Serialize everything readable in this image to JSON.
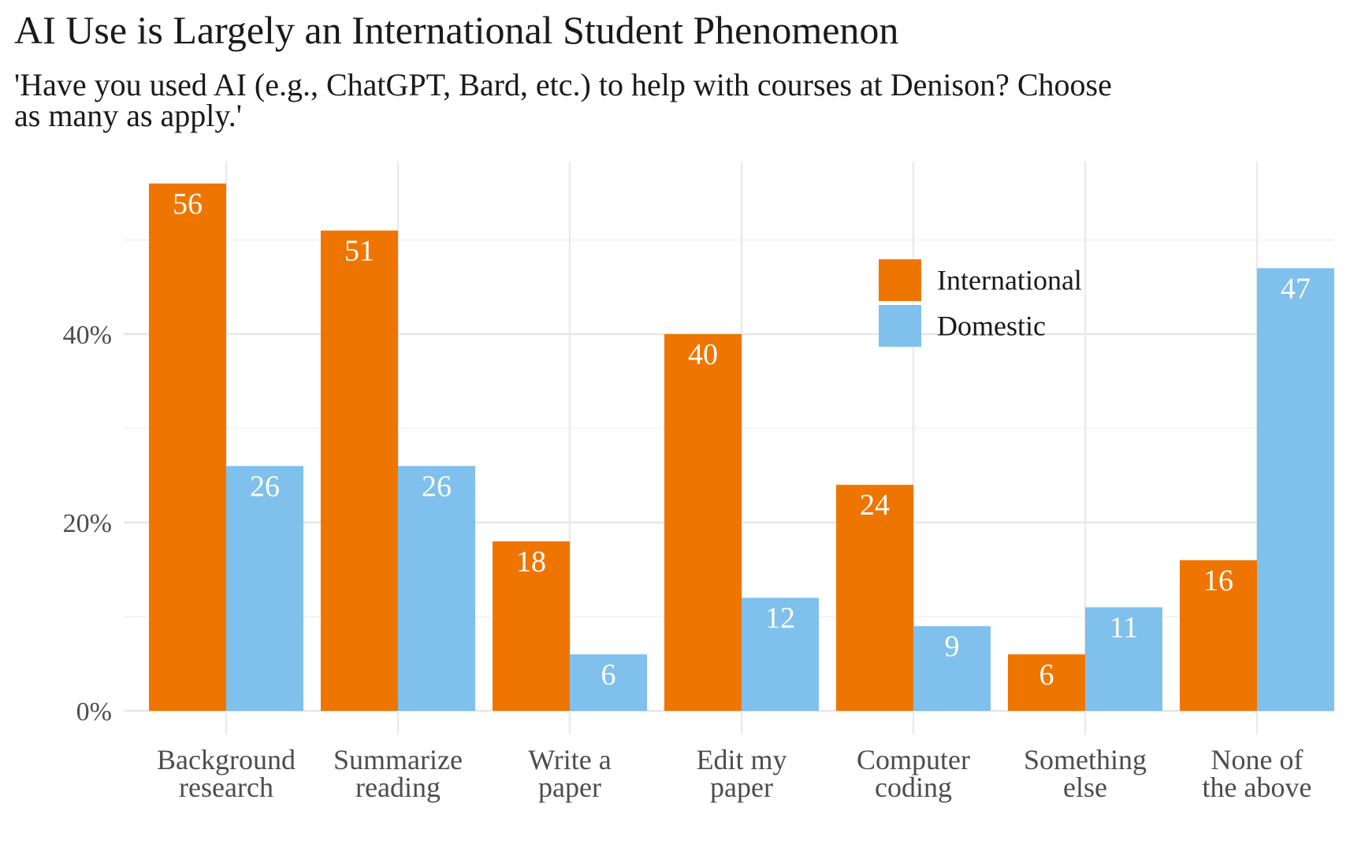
{
  "chart_data": {
    "type": "bar",
    "title": "AI Use is Largely an International Student Phenomenon",
    "subtitle": "'Have you used AI (e.g., ChatGPT, Bard, etc.) to help with courses at Denison? Choose as many as apply.'",
    "xlabel": "",
    "ylabel": "",
    "categories": [
      [
        "Background",
        "research"
      ],
      [
        "Summarize",
        "reading"
      ],
      [
        "Write a",
        "paper"
      ],
      [
        "Edit my",
        "paper"
      ],
      [
        "Computer",
        "coding"
      ],
      [
        "Something",
        "else"
      ],
      [
        "None of",
        "the above"
      ]
    ],
    "series": [
      {
        "name": "International",
        "color": "#EE7600",
        "values": [
          56,
          51,
          18,
          40,
          24,
          6,
          16
        ]
      },
      {
        "name": "Domestic",
        "color": "#7FC0EC",
        "values": [
          26,
          26,
          6,
          12,
          9,
          11,
          47
        ]
      }
    ],
    "y_ticks": [
      0,
      20,
      40
    ],
    "y_tick_labels": [
      "0%",
      "20%",
      "40%"
    ],
    "ylim": [
      0,
      58
    ],
    "grid": true,
    "legend_position": "top-right-inside",
    "data_label_color": "#ffffff"
  }
}
